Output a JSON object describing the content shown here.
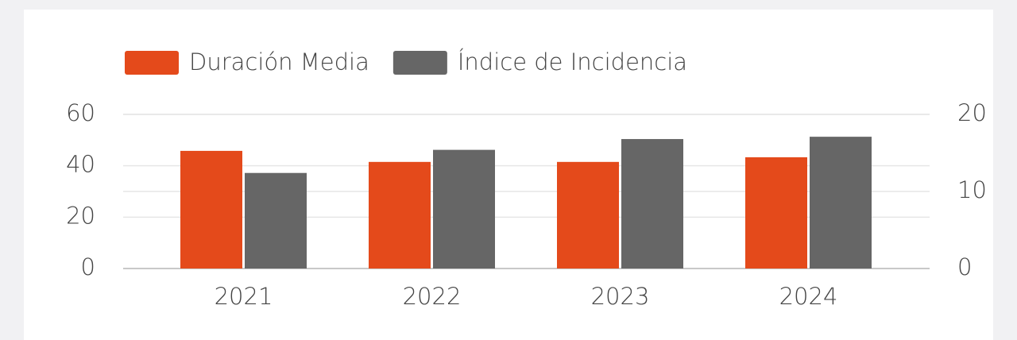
{
  "chart_data": {
    "type": "bar",
    "categories": [
      "2021",
      "2022",
      "2023",
      "2024"
    ],
    "series": [
      {
        "name": "Duración Media",
        "color": "#e44a1b",
        "values": [
          45.8,
          41.5,
          41.5,
          43.3
        ]
      },
      {
        "name": "Índice de Incidencia",
        "color": "#666666",
        "axis": "y2",
        "values": [
          12.4,
          15.4,
          16.8,
          17.1
        ]
      }
    ],
    "ylim": [
      0,
      60
    ],
    "yticks": [
      0,
      20,
      40,
      60
    ],
    "y2lim": [
      0,
      20
    ],
    "y2ticks": [
      0,
      10,
      20
    ],
    "grid": true,
    "legend": "top"
  }
}
